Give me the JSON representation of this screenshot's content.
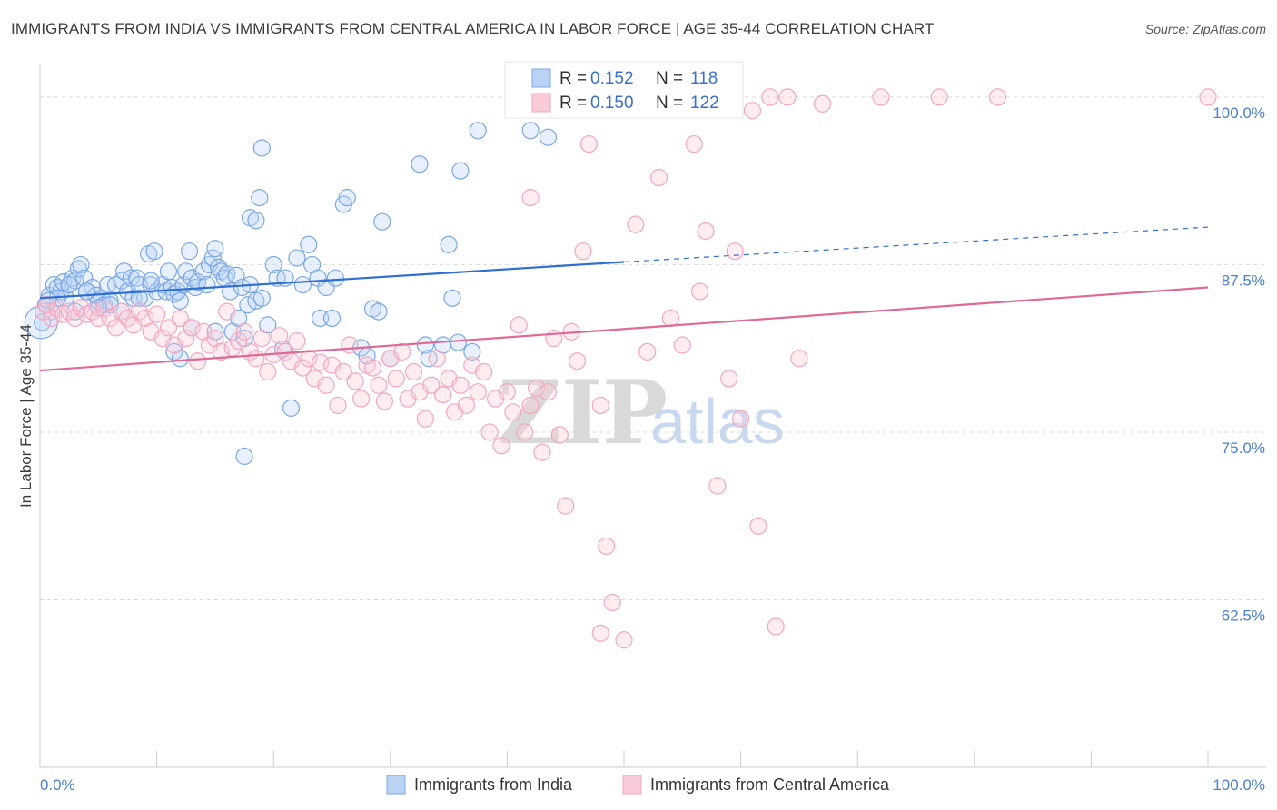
{
  "title": "IMMIGRANTS FROM INDIA VS IMMIGRANTS FROM CENTRAL AMERICA IN LABOR FORCE | AGE 35-44 CORRELATION CHART",
  "source": "Source: ZipAtlas.com",
  "watermark": {
    "zip": "ZIP",
    "atlas": "atlas"
  },
  "chart_data": {
    "type": "scatter",
    "title": "IMMIGRANTS FROM INDIA VS IMMIGRANTS FROM CENTRAL AMERICA IN LABOR FORCE | AGE 35-44 CORRELATION CHART",
    "xlabel": "",
    "ylabel": "In Labor Force | Age 35-44",
    "xlim": [
      0,
      100
    ],
    "ylim": [
      50,
      102.5
    ],
    "x_tick_labels": [
      "0.0%",
      "100.0%"
    ],
    "y_ticks": [
      62.5,
      75.0,
      87.5,
      100.0
    ],
    "y_tick_labels": [
      "62.5%",
      "75.0%",
      "87.5%",
      "100.0%"
    ],
    "grid": true,
    "legend_position": "top-center",
    "stats": [
      {
        "r_label": "R =",
        "r": "0.152",
        "n_label": "N =",
        "n": "118"
      },
      {
        "r_label": "R =",
        "r": "0.150",
        "n_label": "N =",
        "n": "122"
      }
    ],
    "series": [
      {
        "name": "Immigrants from India",
        "color": "#7aa7e8",
        "line_color": "#2f6fd0",
        "trend": {
          "x0": 0,
          "y0": 85.0,
          "x1": 50,
          "y1": 87.7,
          "dash_x1": 100,
          "dash_y1": 90.3
        },
        "points": [
          [
            0.2,
            83.2
          ],
          [
            0.5,
            84.5
          ],
          [
            0.8,
            85.2
          ],
          [
            1.0,
            84.0
          ],
          [
            1.2,
            86.0
          ],
          [
            1.5,
            85.8
          ],
          [
            1.8,
            85.5
          ],
          [
            2.0,
            86.2
          ],
          [
            2.2,
            85.0
          ],
          [
            2.5,
            86.0
          ],
          [
            2.8,
            86.5
          ],
          [
            3.0,
            86.3
          ],
          [
            3.3,
            87.2
          ],
          [
            3.5,
            87.5
          ],
          [
            3.8,
            86.5
          ],
          [
            4.0,
            85.5
          ],
          [
            4.5,
            85.8
          ],
          [
            4.8,
            85.2
          ],
          [
            5.0,
            84.8
          ],
          [
            5.3,
            85.0
          ],
          [
            5.5,
            84.5
          ],
          [
            5.8,
            86.0
          ],
          [
            6.0,
            84.8
          ],
          [
            6.5,
            86.0
          ],
          [
            7.0,
            86.3
          ],
          [
            7.2,
            87.0
          ],
          [
            7.5,
            85.5
          ],
          [
            7.8,
            86.5
          ],
          [
            8.0,
            85.0
          ],
          [
            8.3,
            86.5
          ],
          [
            8.5,
            86.0
          ],
          [
            9.0,
            85.0
          ],
          [
            9.3,
            88.3
          ],
          [
            9.5,
            86.0
          ],
          [
            9.8,
            88.5
          ],
          [
            10.0,
            85.5
          ],
          [
            10.5,
            86.0
          ],
          [
            10.8,
            85.5
          ],
          [
            11.0,
            87.0
          ],
          [
            11.3,
            85.8
          ],
          [
            11.5,
            85.3
          ],
          [
            11.8,
            85.5
          ],
          [
            12.0,
            84.8
          ],
          [
            12.3,
            86.0
          ],
          [
            12.5,
            87.0
          ],
          [
            12.8,
            88.5
          ],
          [
            13.0,
            86.5
          ],
          [
            13.3,
            85.8
          ],
          [
            13.5,
            86.2
          ],
          [
            14.0,
            87.0
          ],
          [
            14.3,
            86.0
          ],
          [
            14.5,
            87.5
          ],
          [
            14.8,
            88.0
          ],
          [
            15.0,
            88.7
          ],
          [
            15.3,
            87.3
          ],
          [
            15.5,
            87.0
          ],
          [
            15.8,
            86.5
          ],
          [
            16.0,
            86.8
          ],
          [
            16.3,
            85.5
          ],
          [
            16.5,
            82.5
          ],
          [
            16.8,
            86.7
          ],
          [
            17.0,
            83.5
          ],
          [
            17.3,
            85.8
          ],
          [
            17.5,
            82.0
          ],
          [
            17.8,
            84.5
          ],
          [
            18.0,
            86.0
          ],
          [
            18.5,
            84.8
          ],
          [
            19.0,
            85.0
          ],
          [
            19.5,
            83.0
          ],
          [
            20.0,
            87.5
          ],
          [
            20.3,
            86.5
          ],
          [
            20.8,
            81.2
          ],
          [
            21.0,
            86.5
          ],
          [
            21.5,
            76.8
          ],
          [
            22.0,
            88.0
          ],
          [
            22.5,
            86.0
          ],
          [
            23.0,
            89.0
          ],
          [
            23.3,
            87.5
          ],
          [
            23.8,
            86.5
          ],
          [
            24.0,
            83.5
          ],
          [
            24.5,
            85.8
          ],
          [
            25.0,
            83.5
          ],
          [
            25.3,
            86.5
          ],
          [
            26.0,
            92.0
          ],
          [
            26.3,
            92.5
          ],
          [
            27.5,
            81.3
          ],
          [
            28.0,
            80.7
          ],
          [
            28.5,
            84.2
          ],
          [
            29.0,
            84.0
          ],
          [
            29.3,
            90.7
          ],
          [
            30.0,
            80.5
          ],
          [
            32.5,
            95.0
          ],
          [
            33.0,
            81.5
          ],
          [
            33.3,
            80.5
          ],
          [
            34.5,
            81.5
          ],
          [
            35.0,
            89.0
          ],
          [
            35.3,
            85.0
          ],
          [
            35.8,
            81.7
          ],
          [
            36.0,
            94.5
          ],
          [
            37.0,
            81.0
          ],
          [
            37.5,
            97.5
          ],
          [
            42.0,
            97.5
          ],
          [
            43.0,
            99.5
          ],
          [
            43.5,
            97.0
          ],
          [
            17.5,
            73.2
          ],
          [
            18.0,
            91.0
          ],
          [
            18.8,
            92.5
          ],
          [
            18.5,
            90.8
          ],
          [
            15.0,
            82.5
          ],
          [
            11.5,
            81.0
          ],
          [
            12.0,
            80.5
          ],
          [
            8.5,
            85.0
          ],
          [
            7.0,
            84.0
          ],
          [
            6.0,
            84.5
          ],
          [
            4.0,
            85.5
          ],
          [
            2.5,
            86.0
          ],
          [
            1.5,
            85.0
          ],
          [
            0.7,
            84.8
          ],
          [
            3.0,
            84.0
          ],
          [
            5.0,
            84.3
          ],
          [
            9.5,
            86.3
          ],
          [
            13.0,
            82.8
          ],
          [
            19.0,
            96.2
          ]
        ]
      },
      {
        "name": "Immigrants from Central America",
        "color": "#f4a6bf",
        "line_color": "#e06a96",
        "trend": {
          "x0": 0,
          "y0": 79.6,
          "x1": 100,
          "y1": 85.8
        },
        "points": [
          [
            0.3,
            84.0
          ],
          [
            0.6,
            84.5
          ],
          [
            1.0,
            83.5
          ],
          [
            1.5,
            84.2
          ],
          [
            2.0,
            83.8
          ],
          [
            2.5,
            84.0
          ],
          [
            3.0,
            83.5
          ],
          [
            3.5,
            84.3
          ],
          [
            4.0,
            83.8
          ],
          [
            4.5,
            84.0
          ],
          [
            5.0,
            83.5
          ],
          [
            5.5,
            84.2
          ],
          [
            6.0,
            83.5
          ],
          [
            6.5,
            82.8
          ],
          [
            7.0,
            84.0
          ],
          [
            7.5,
            83.5
          ],
          [
            8.0,
            83.0
          ],
          [
            8.5,
            84.0
          ],
          [
            9.0,
            83.5
          ],
          [
            9.5,
            82.5
          ],
          [
            10.0,
            83.8
          ],
          [
            10.5,
            82.0
          ],
          [
            11.0,
            82.8
          ],
          [
            11.5,
            81.5
          ],
          [
            12.0,
            83.5
          ],
          [
            12.5,
            82.0
          ],
          [
            13.0,
            82.8
          ],
          [
            13.5,
            80.3
          ],
          [
            14.0,
            82.5
          ],
          [
            14.5,
            81.5
          ],
          [
            15.0,
            82.0
          ],
          [
            15.5,
            81.0
          ],
          [
            16.0,
            84.0
          ],
          [
            16.5,
            81.3
          ],
          [
            17.0,
            81.8
          ],
          [
            17.5,
            82.5
          ],
          [
            18.0,
            81.0
          ],
          [
            18.5,
            80.5
          ],
          [
            19.0,
            82.0
          ],
          [
            19.5,
            79.5
          ],
          [
            20.0,
            80.8
          ],
          [
            20.5,
            82.2
          ],
          [
            21.0,
            81.0
          ],
          [
            21.5,
            80.3
          ],
          [
            22.0,
            81.8
          ],
          [
            22.5,
            79.8
          ],
          [
            23.0,
            80.5
          ],
          [
            23.5,
            79.0
          ],
          [
            24.0,
            80.2
          ],
          [
            24.5,
            78.5
          ],
          [
            25.0,
            80.0
          ],
          [
            25.5,
            77.0
          ],
          [
            26.0,
            79.5
          ],
          [
            26.5,
            81.5
          ],
          [
            27.0,
            78.8
          ],
          [
            27.5,
            77.5
          ],
          [
            28.0,
            80.0
          ],
          [
            28.5,
            79.8
          ],
          [
            29.0,
            78.5
          ],
          [
            29.5,
            77.3
          ],
          [
            30.0,
            80.5
          ],
          [
            30.5,
            79.0
          ],
          [
            31.0,
            81.0
          ],
          [
            31.5,
            77.5
          ],
          [
            32.0,
            79.5
          ],
          [
            32.5,
            78.0
          ],
          [
            33.0,
            76.0
          ],
          [
            33.5,
            78.5
          ],
          [
            34.0,
            80.5
          ],
          [
            34.5,
            77.8
          ],
          [
            35.0,
            79.0
          ],
          [
            35.5,
            76.5
          ],
          [
            36.0,
            78.5
          ],
          [
            36.5,
            77.0
          ],
          [
            37.0,
            80.0
          ],
          [
            37.5,
            78.0
          ],
          [
            38.0,
            79.5
          ],
          [
            38.5,
            75.0
          ],
          [
            39.0,
            77.5
          ],
          [
            39.5,
            74.0
          ],
          [
            40.0,
            78.0
          ],
          [
            40.5,
            76.5
          ],
          [
            41.0,
            83.0
          ],
          [
            41.5,
            75.0
          ],
          [
            42.0,
            77.0
          ],
          [
            42.5,
            78.3
          ],
          [
            43.0,
            73.5
          ],
          [
            43.5,
            78.0
          ],
          [
            44.0,
            82.0
          ],
          [
            44.5,
            74.8
          ],
          [
            45.0,
            69.5
          ],
          [
            46.0,
            80.3
          ],
          [
            46.5,
            88.5
          ],
          [
            47.0,
            96.5
          ],
          [
            48.0,
            77.0
          ],
          [
            48.5,
            66.5
          ],
          [
            49.0,
            62.3
          ],
          [
            50.0,
            59.5
          ],
          [
            51.0,
            90.5
          ],
          [
            52.0,
            81.0
          ],
          [
            53.0,
            94.0
          ],
          [
            54.0,
            83.5
          ],
          [
            55.0,
            81.5
          ],
          [
            56.0,
            96.5
          ],
          [
            57.0,
            90.0
          ],
          [
            58.0,
            71.0
          ],
          [
            59.0,
            79.0
          ],
          [
            60.0,
            76.0
          ],
          [
            61.0,
            99.0
          ],
          [
            61.5,
            68.0
          ],
          [
            62.5,
            100.0
          ],
          [
            63.0,
            60.5
          ],
          [
            64.0,
            100.0
          ],
          [
            65.0,
            80.5
          ],
          [
            67.0,
            99.5
          ],
          [
            72.0,
            100.0
          ],
          [
            77.0,
            100.0
          ],
          [
            82.0,
            100.0
          ],
          [
            100.0,
            100.0
          ],
          [
            59.5,
            88.5
          ],
          [
            56.5,
            85.5
          ],
          [
            48.0,
            60.0
          ],
          [
            45.5,
            82.5
          ],
          [
            42.0,
            92.5
          ]
        ]
      }
    ]
  },
  "bottom_legend": [
    {
      "label": "Immigrants from India"
    },
    {
      "label": "Immigrants from Central America"
    }
  ]
}
